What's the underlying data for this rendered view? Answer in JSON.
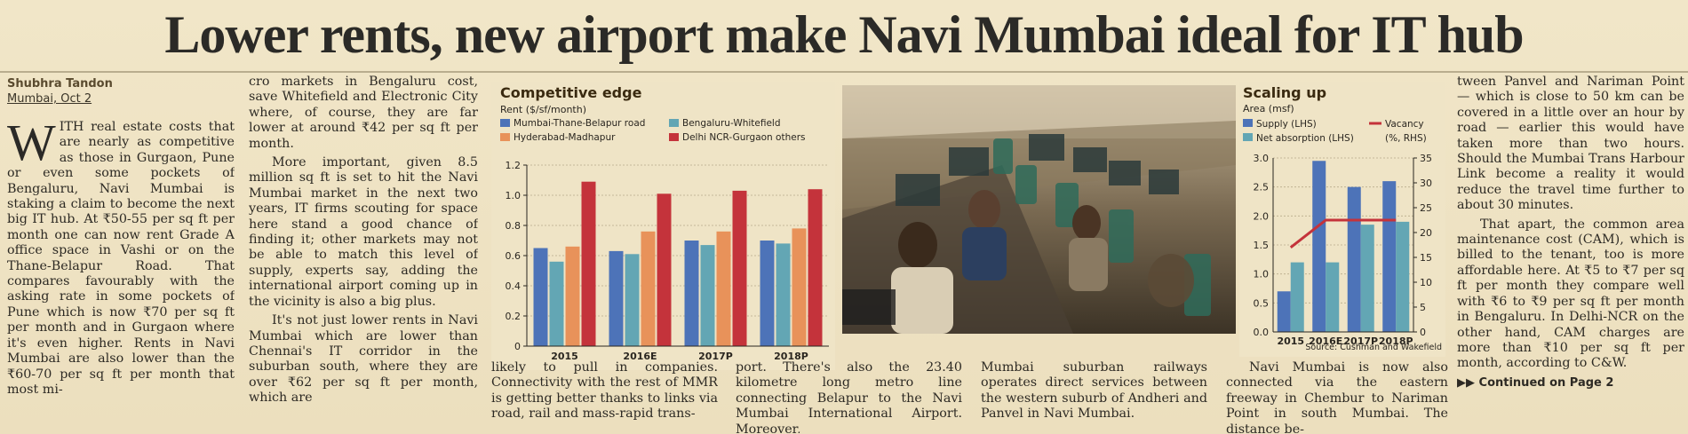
{
  "headline": "Lower rents, new airport make Navi Mumbai ideal for IT hub",
  "byline": "Shubhra Tandon",
  "dateline": "Mumbai, Oct 2",
  "dropcap": "W",
  "col1": {
    "p1": "ITH real estate costs that are nearly as competitive as those in Gurgaon, Pune or even some pockets of Bengaluru, Navi Mumbai is staking a claim to become the next big IT hub. At ₹50-55 per sq ft per month one can now rent Grade A office space in Vashi or on the Thane-Belapur Road. That compares favourably with the asking rate in some pockets of Pune which is now ₹70 per sq ft per month and in Gurgaon where it's even higher. Rents in Navi Mumbai are also lower than the ₹60-70 per sq ft per month that most mi-"
  },
  "col2": {
    "p1": "cro markets in Bengaluru cost, save Whitefield and Electronic City where, of course, they are far lower at around ₹42 per sq ft per month.",
    "p2": "More important, given 8.5 million sq ft is set to hit the Navi Mumbai market in the next two years, IT firms scouting for space here stand a good chance of finding it; other markets may not be able to match this level of supply, experts say, adding the international airport coming up in the vicinity is also a big plus.",
    "p3": "It's not just lower rents in Navi Mumbai which are lower than Chennai's IT corridor in the suburban south, where they are over ₹62 per sq ft per month, which are"
  },
  "bottom": {
    "c3": "likely to pull in companies. Connectivity with the rest of MMR is getting better thanks to links via road, rail and mass-rapid trans-",
    "c4": "port. There's also the 23.40 kilometre long metro line connecting Belapur to the Navi Mumbai International Airport. Moreover,",
    "c5": "Mumbai suburban railways operates direct services between the western suburb of Andheri and Panvel in Navi Mumbai.",
    "c6": "Navi Mumbai is now also connected via the eastern freeway in Chembur to Nariman Point in south Mumbai. The distance be-"
  },
  "col7": {
    "p1": "tween Panvel and Nariman Point — which is close to 50 km can be covered in a little over an hour by road — earlier this would have taken more than two hours. Should the Mumbai Trans Harbour Link become a reality it would reduce the travel time further to about 30 minutes.",
    "p2": "That apart, the common area maintenance cost (CAM), which is billed to the tenant, too is more affordable here. At ₹5 to ₹7 per sq ft per month they compare well with ₹6 to ₹9 per sq ft per month in Bengaluru. In Delhi-NCR on the other hand, CAM charges are more than ₹10 per sq ft per month, according to C&W.",
    "continued": "Continued on Page 2"
  },
  "chart_data": [
    {
      "type": "bar",
      "title": "Competitive edge",
      "subtitle": "Rent ($/sf/month)",
      "categories": [
        "2015",
        "2016E",
        "2017P",
        "2018P"
      ],
      "series": [
        {
          "name": "Mumbai-Thane-Belapur road",
          "color": "#4d73b8",
          "values": [
            0.65,
            0.63,
            0.7,
            0.7
          ]
        },
        {
          "name": "Bengaluru-Whitefield",
          "color": "#63a6b4",
          "values": [
            0.56,
            0.61,
            0.67,
            0.68
          ]
        },
        {
          "name": "Hyderabad-Madhapur",
          "color": "#e8925a",
          "values": [
            0.66,
            0.76,
            0.76,
            0.78
          ]
        },
        {
          "name": "Delhi NCR-Gurgaon others",
          "color": "#c4333b",
          "values": [
            1.09,
            1.01,
            1.03,
            1.04
          ]
        }
      ],
      "yticks": [
        "0",
        "0.2",
        "0.4",
        "0.6",
        "0.8",
        "1.0",
        "1.2"
      ],
      "ylim": [
        0,
        1.2
      ],
      "legend": "top"
    },
    {
      "type": "bar",
      "title": "Scaling up",
      "subtitle": "Area (msf)",
      "categories": [
        "2015",
        "2016E",
        "2017P",
        "2018P"
      ],
      "series": [
        {
          "name": "Supply (LHS)",
          "color": "#4d73b8",
          "values": [
            0.7,
            2.95,
            2.5,
            2.6
          ]
        },
        {
          "name": "Net absorption (LHS)",
          "color": "#63a6b4",
          "values": [
            1.2,
            1.2,
            1.85,
            1.9
          ]
        },
        {
          "name": "Vacancy",
          "name2": "(%, RHS)",
          "color": "#c4333b",
          "line": true,
          "values": [
            17,
            22.5,
            22.5,
            22.5
          ]
        }
      ],
      "yticks_left": [
        "0.0",
        "0.5",
        "1.0",
        "1.5",
        "2.0",
        "2.5",
        "3.0"
      ],
      "yticks_right": [
        "0",
        "5",
        "10",
        "15",
        "20",
        "25",
        "30",
        "35"
      ],
      "ylim_left": [
        0,
        3.0
      ],
      "ylim_right": [
        0,
        35
      ],
      "source": "Source: Cushman and Wakefield"
    }
  ]
}
